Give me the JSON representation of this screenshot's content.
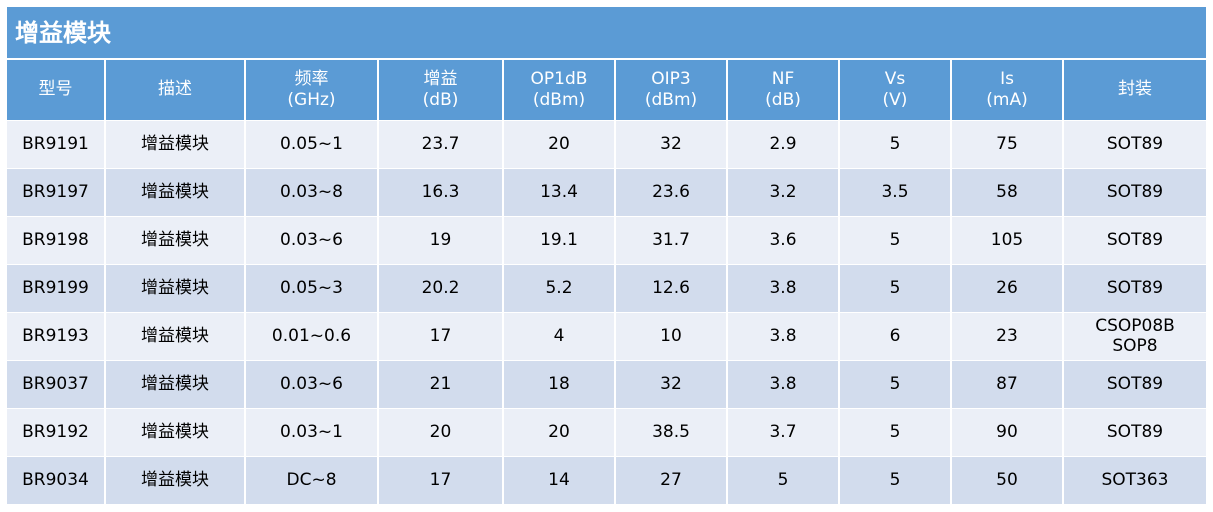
{
  "title": "增益模块",
  "columns": [
    {
      "label": "型号",
      "unit": ""
    },
    {
      "label": "描述",
      "unit": ""
    },
    {
      "label": "频率",
      "unit": "(GHz)"
    },
    {
      "label": "增益",
      "unit": "(dB)"
    },
    {
      "label": "OP1dB",
      "unit": "(dBm)"
    },
    {
      "label": "OIP3",
      "unit": "(dBm)"
    },
    {
      "label": "NF",
      "unit": "(dB)"
    },
    {
      "label": "Vs",
      "unit": "(V)"
    },
    {
      "label": "Is",
      "unit": "(mA)"
    },
    {
      "label": "封装",
      "unit": ""
    }
  ],
  "rows": [
    {
      "model": "BR9191",
      "desc": "增益模块",
      "freq": "0.05~1",
      "gain": "23.7",
      "op1db": "20",
      "oip3": "32",
      "nf": "2.9",
      "vs": "5",
      "is": "75",
      "pkg": [
        "SOT89"
      ]
    },
    {
      "model": "BR9197",
      "desc": "增益模块",
      "freq": "0.03~8",
      "gain": "16.3",
      "op1db": "13.4",
      "oip3": "23.6",
      "nf": "3.2",
      "vs": "3.5",
      "is": "58",
      "pkg": [
        "SOT89"
      ]
    },
    {
      "model": "BR9198",
      "desc": "增益模块",
      "freq": "0.03~6",
      "gain": "19",
      "op1db": "19.1",
      "oip3": "31.7",
      "nf": "3.6",
      "vs": "5",
      "is": "105",
      "pkg": [
        "SOT89"
      ]
    },
    {
      "model": "BR9199",
      "desc": "增益模块",
      "freq": "0.05~3",
      "gain": "20.2",
      "op1db": "5.2",
      "oip3": "12.6",
      "nf": "3.8",
      "vs": "5",
      "is": "26",
      "pkg": [
        "SOT89"
      ]
    },
    {
      "model": "BR9193",
      "desc": "增益模块",
      "freq": "0.01~0.6",
      "gain": "17",
      "op1db": "4",
      "oip3": "10",
      "nf": "3.8",
      "vs": "6",
      "is": "23",
      "pkg": [
        "CSOP08B",
        "SOP8"
      ]
    },
    {
      "model": "BR9037",
      "desc": "增益模块",
      "freq": "0.03~6",
      "gain": "21",
      "op1db": "18",
      "oip3": "32",
      "nf": "3.8",
      "vs": "5",
      "is": "87",
      "pkg": [
        "SOT89"
      ]
    },
    {
      "model": "BR9192",
      "desc": "增益模块",
      "freq": "0.03~1",
      "gain": "20",
      "op1db": "20",
      "oip3": "38.5",
      "nf": "3.7",
      "vs": "5",
      "is": "90",
      "pkg": [
        "SOT89"
      ]
    },
    {
      "model": "BR9034",
      "desc": "增益模块",
      "freq": "DC~8",
      "gain": "17",
      "op1db": "14",
      "oip3": "27",
      "nf": "5",
      "vs": "5",
      "is": "50",
      "pkg": [
        "SOT363"
      ]
    }
  ],
  "colors": {
    "header": "#5b9bd5",
    "row_light": "#ebeff7",
    "row_dark": "#d2dced"
  }
}
